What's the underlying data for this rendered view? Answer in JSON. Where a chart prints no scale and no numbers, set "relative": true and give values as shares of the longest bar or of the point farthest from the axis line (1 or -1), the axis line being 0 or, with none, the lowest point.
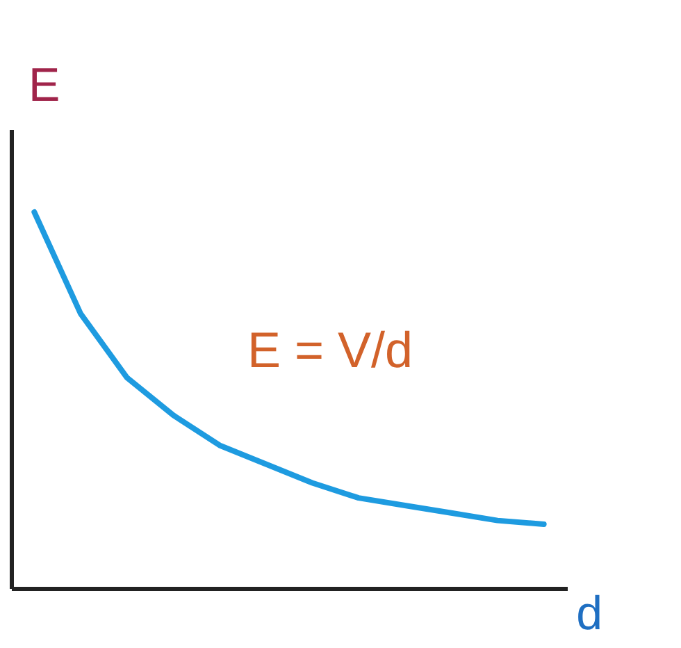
{
  "chart_data": {
    "type": "line",
    "relative": true,
    "xlabel": "d",
    "ylabel": "E",
    "annotations": [
      "E = V/d"
    ],
    "categories": [
      null,
      null,
      null,
      null,
      null,
      null,
      null,
      null,
      null,
      null,
      null,
      null
    ],
    "series": [
      {
        "color": "#1e9be0",
        "values": [
          1,
          0.73,
          0.56,
          0.46,
          0.38,
          0.33,
          0.28,
          0.24,
          0.22,
          0.2,
          0.18,
          0.17
        ]
      }
    ]
  }
}
